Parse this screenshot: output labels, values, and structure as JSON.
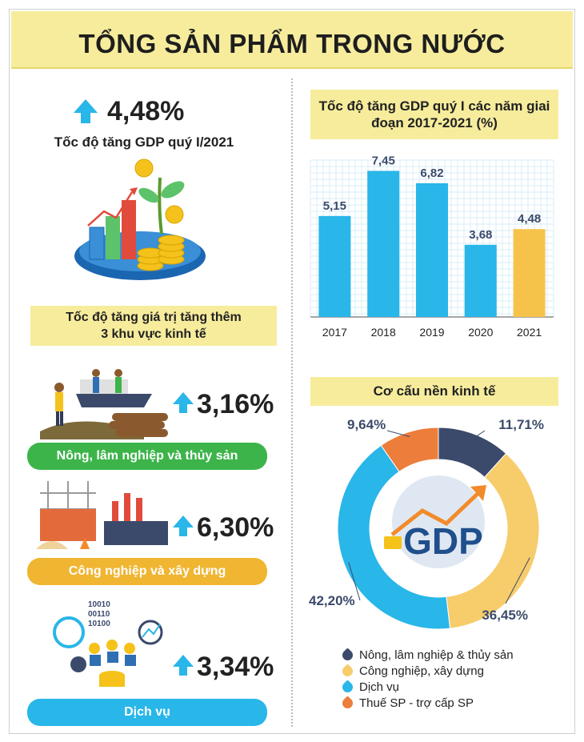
{
  "title": "TỔNG SẢN PHẨM TRONG NƯỚC",
  "gdp_growth": {
    "value": "4,48%",
    "label": "Tốc độ tăng GDP quý I/2021"
  },
  "sectors": {
    "heading_line1": "Tốc độ tăng giá trị tăng thêm",
    "heading_line2": "3 khu vực kinh tế",
    "items": [
      {
        "value": "3,16%",
        "label": "Nông, lâm nghiệp và thủy sản",
        "color": "#3cb44a"
      },
      {
        "value": "6,30%",
        "label": "Công nghiệp và xây dựng",
        "color": "#f0b531"
      },
      {
        "value": "3,34%",
        "label": "Dịch vụ",
        "color": "#29b6e8"
      }
    ]
  },
  "chart_data": [
    {
      "type": "bar",
      "title": "Tốc độ tăng GDP quý I các năm giai đoạn 2017-2021 (%)",
      "categories": [
        "2017",
        "2018",
        "2019",
        "2020",
        "2021"
      ],
      "values": [
        5.15,
        7.45,
        6.82,
        3.68,
        4.48
      ],
      "data_labels": [
        "5,15",
        "7,45",
        "6,82",
        "3,68",
        "4,48"
      ],
      "colors": [
        "#29b6e8",
        "#29b6e8",
        "#29b6e8",
        "#29b6e8",
        "#f6c34a"
      ],
      "ylim": [
        0,
        8
      ],
      "grid": true
    },
    {
      "type": "pie",
      "title": "Cơ cấu nền kinh tế",
      "center_label": "GDP",
      "labels": [
        "Nông, lâm nghiệp & thủy sản",
        "Công nghiệp, xây dựng",
        "Dịch vụ",
        "Thuế SP - trợ cấp SP"
      ],
      "values": [
        11.71,
        36.45,
        42.2,
        9.64
      ],
      "data_labels": [
        "11,71%",
        "36,45%",
        "42,20%",
        "9,64%"
      ],
      "colors": [
        "#3b4a6b",
        "#f7cc6b",
        "#29b6e8",
        "#ed7d3a"
      ],
      "legend_position": "bottom"
    }
  ]
}
